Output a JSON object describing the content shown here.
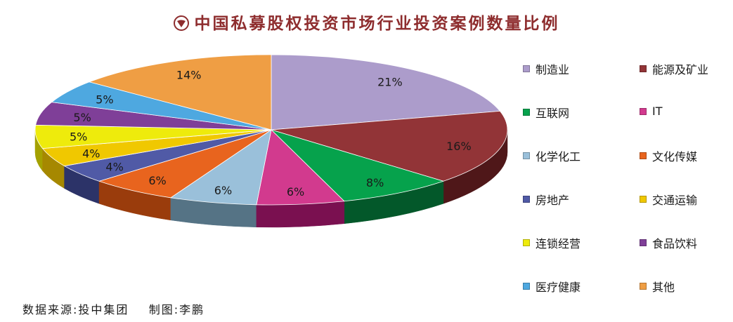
{
  "chart_data": {
    "type": "pie",
    "title": "中国私募股权投资市场行业投资案例数量比例",
    "three_d": true,
    "legend_position": "right",
    "slices": [
      {
        "name": "制造业",
        "value": 21,
        "label": "21%",
        "color": "#ac9ccb",
        "side_color": "#6d5f87"
      },
      {
        "name": "能源及矿业",
        "value": 16,
        "label": "16%",
        "color": "#923437",
        "side_color": "#4f1719"
      },
      {
        "name": "互联网",
        "value": 8,
        "label": "8%",
        "color": "#06a24c",
        "side_color": "#03582a"
      },
      {
        "name": "IT",
        "value": 6,
        "label": "6%",
        "color": "#d23a8e",
        "side_color": "#7a1050"
      },
      {
        "name": "化学化工",
        "value": 6,
        "label": "6%",
        "color": "#9ac0da",
        "side_color": "#557385"
      },
      {
        "name": "文化传媒",
        "value": 6,
        "label": "6%",
        "color": "#e8641e",
        "side_color": "#9a3c0c"
      },
      {
        "name": "房地产",
        "value": 4,
        "label": "4%",
        "color": "#505aa6",
        "side_color": "#2c3368"
      },
      {
        "name": "交通运输",
        "value": 4,
        "label": "4%",
        "color": "#f0c800",
        "side_color": "#a68800"
      },
      {
        "name": "连锁经营",
        "value": 5,
        "label": "5%",
        "color": "#eeeb0c",
        "side_color": "#a4a100"
      },
      {
        "name": "食品饮料",
        "value": 5,
        "label": "5%",
        "color": "#7f3f98",
        "side_color": "#4a2060"
      },
      {
        "name": "医疗健康",
        "value": 5,
        "label": "5%",
        "color": "#4ea8e0",
        "side_color": "#296a92"
      },
      {
        "name": "其他",
        "value": 14,
        "label": "14%",
        "color": "#ef9e44",
        "side_color": "#a4641c"
      }
    ]
  },
  "footer": {
    "source": "数据来源:投中集团    制图:李鹏"
  },
  "colors": {
    "title": "#8e2d2e",
    "title_icon": "#8e2d2e"
  },
  "icons": {
    "title_icon": "heart-shield-icon"
  }
}
